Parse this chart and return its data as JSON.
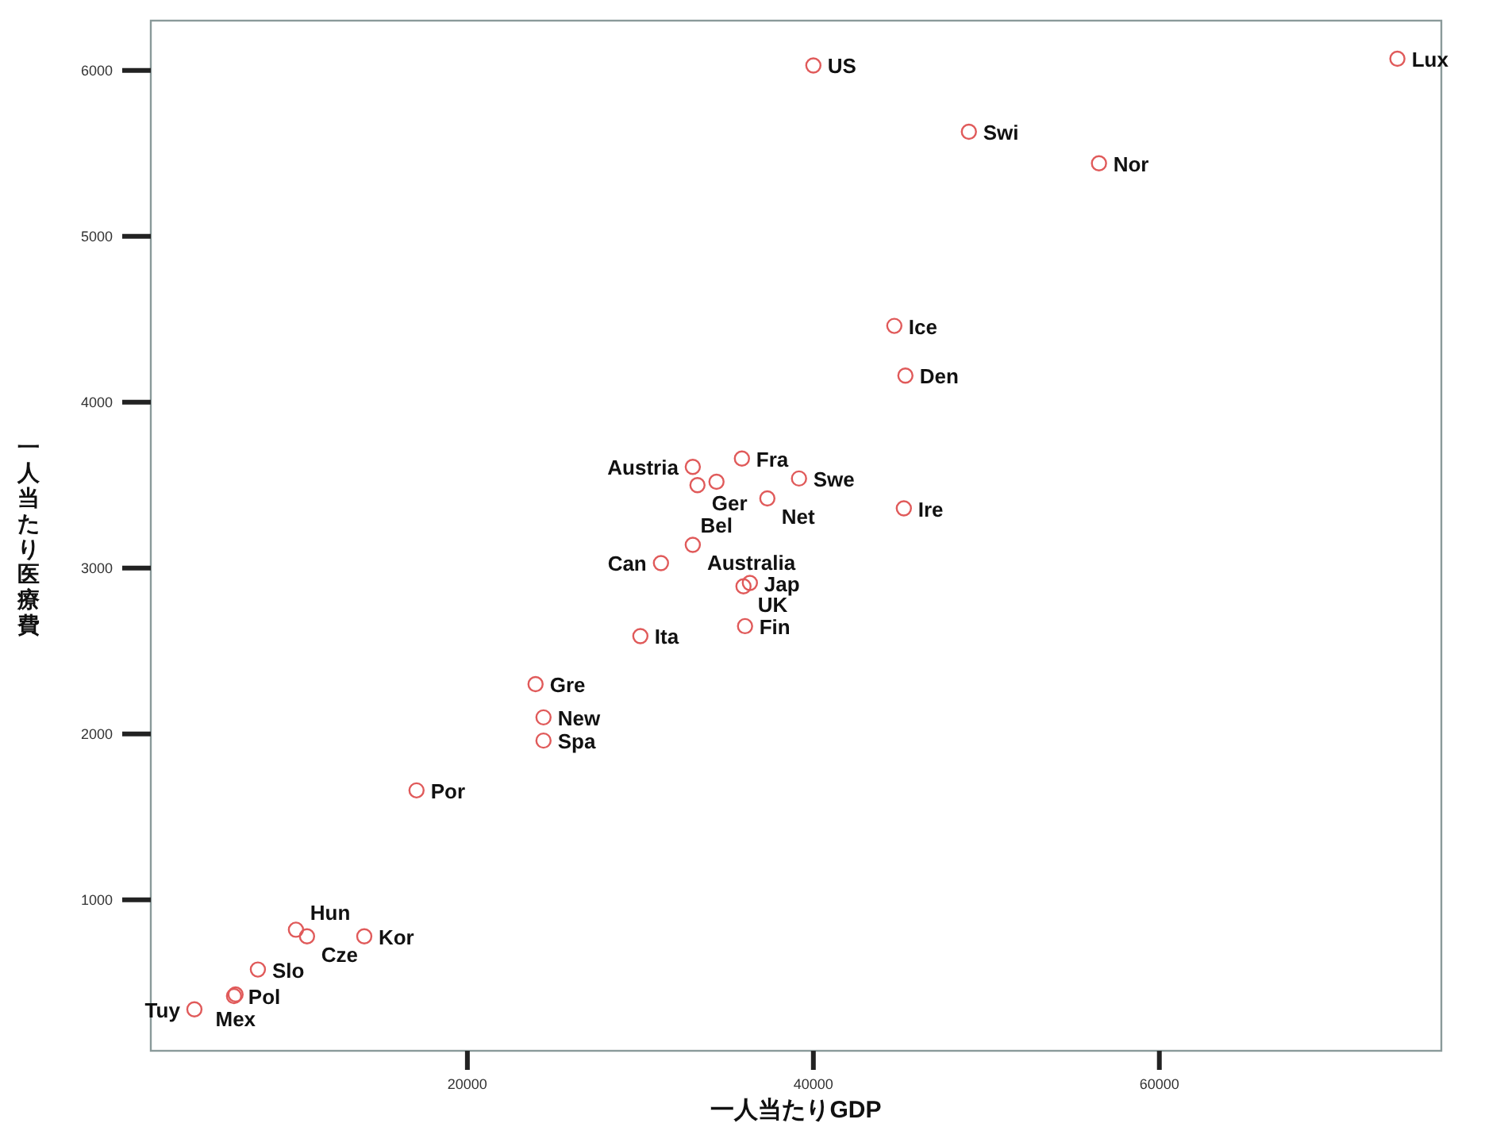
{
  "chart_data": {
    "type": "scatter",
    "xlabel": "一人当たりGDP",
    "ylabel": "一人当たり医療費",
    "color": "#e05a5a",
    "marker": "circle",
    "xlim": [
      1700,
      76300
    ],
    "ylim": [
      90,
      6300
    ],
    "xticks": [
      20000,
      40000,
      60000
    ],
    "yticks": [
      1000,
      2000,
      3000,
      4000,
      5000,
      6000
    ],
    "x": [
      40000,
      73760,
      48990,
      56510,
      44680,
      45320,
      35870,
      33030,
      39170,
      33300,
      34400,
      37340,
      45230,
      33030,
      31190,
      36330,
      35960,
      30000,
      36050,
      23940,
      24400,
      24400,
      17060,
      10090,
      10730,
      14040,
      7890,
      6510,
      6600,
      4220
    ],
    "values": [
      6030,
      6070,
      5630,
      5440,
      4460,
      4160,
      3660,
      3610,
      3540,
      3500,
      3520,
      3420,
      3360,
      3140,
      3030,
      2910,
      2890,
      2590,
      2650,
      2300,
      2100,
      1960,
      1660,
      820,
      780,
      780,
      580,
      420,
      430,
      340
    ],
    "annotations": [
      {
        "text": "US",
        "x": 40000,
        "y": 6030
      },
      {
        "text": "Lux",
        "x": 73760,
        "y": 6070
      },
      {
        "text": "Swi",
        "x": 48990,
        "y": 5630
      },
      {
        "text": "Nor",
        "x": 56510,
        "y": 5440
      },
      {
        "text": "Ice",
        "x": 44680,
        "y": 4460
      },
      {
        "text": "Den",
        "x": 45320,
        "y": 4160
      },
      {
        "text": "Fra",
        "x": 35870,
        "y": 3660
      },
      {
        "text": "Austria",
        "x": 33030,
        "y": 3610
      },
      {
        "text": "Swe",
        "x": 39170,
        "y": 3540
      },
      {
        "text": "Ger",
        "x": 33300,
        "y": 3500
      },
      {
        "text": "Bel",
        "x": 34400,
        "y": 3520
      },
      {
        "text": "Net",
        "x": 37340,
        "y": 3420
      },
      {
        "text": "Ire",
        "x": 45230,
        "y": 3360
      },
      {
        "text": "Australia",
        "x": 33030,
        "y": 3140
      },
      {
        "text": "Can",
        "x": 31190,
        "y": 3030
      },
      {
        "text": "Jap",
        "x": 36330,
        "y": 2910
      },
      {
        "text": "UK",
        "x": 35960,
        "y": 2890
      },
      {
        "text": "Ita",
        "x": 30000,
        "y": 2590
      },
      {
        "text": "Fin",
        "x": 36050,
        "y": 2650
      },
      {
        "text": "Gre",
        "x": 23940,
        "y": 2300
      },
      {
        "text": "New",
        "x": 24400,
        "y": 2100
      },
      {
        "text": "Spa",
        "x": 24400,
        "y": 1960
      },
      {
        "text": "Por",
        "x": 17060,
        "y": 1660
      },
      {
        "text": "Hun",
        "x": 10090,
        "y": 820
      },
      {
        "text": "Cze",
        "x": 10730,
        "y": 780
      },
      {
        "text": "Kor",
        "x": 14040,
        "y": 780
      },
      {
        "text": "Slo",
        "x": 7890,
        "y": 580
      },
      {
        "text": "Pol",
        "x": 6510,
        "y": 420
      },
      {
        "text": "Mex",
        "x": 6600,
        "y": 430
      },
      {
        "text": "Tuy",
        "x": 4220,
        "y": 340
      }
    ]
  }
}
